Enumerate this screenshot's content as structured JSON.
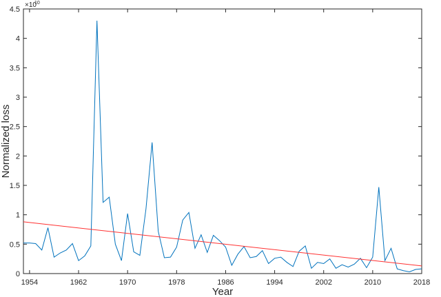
{
  "chart_data": {
    "type": "line",
    "xlabel": "Year",
    "ylabel": "Normalized loss",
    "exponent_label": "×10",
    "exponent_power": "10",
    "xlim": [
      1953,
      2018
    ],
    "ylim": [
      0,
      4.5
    ],
    "y_scale_factor": 10000000000,
    "xticks": [
      1954,
      1962,
      1970,
      1978,
      1986,
      1994,
      2002,
      2010,
      2018
    ],
    "yticks": [
      0,
      0.5,
      1,
      1.5,
      2,
      2.5,
      3,
      3.5,
      4,
      4.5
    ],
    "ytick_labels": [
      "0",
      "0.5",
      "1",
      "1.5",
      "2",
      "2.5",
      "3",
      "3.5",
      "4",
      "4.5"
    ],
    "grid": false,
    "series": [
      {
        "color": "#0072BD",
        "x": [
          1953,
          1954,
          1955,
          1956,
          1957,
          1958,
          1959,
          1960,
          1961,
          1962,
          1963,
          1964,
          1965,
          1966,
          1967,
          1968,
          1969,
          1970,
          1971,
          1972,
          1973,
          1974,
          1975,
          1976,
          1977,
          1978,
          1979,
          1980,
          1981,
          1982,
          1983,
          1984,
          1985,
          1986,
          1987,
          1988,
          1989,
          1990,
          1991,
          1992,
          1993,
          1994,
          1995,
          1996,
          1997,
          1998,
          1999,
          2000,
          2001,
          2002,
          2003,
          2004,
          2005,
          2006,
          2007,
          2008,
          2009,
          2010,
          2011,
          2012,
          2013,
          2014,
          2015,
          2016,
          2017,
          2018
        ],
        "values": [
          0.52,
          0.52,
          0.51,
          0.4,
          0.78,
          0.28,
          0.35,
          0.4,
          0.51,
          0.22,
          0.3,
          0.47,
          4.3,
          1.21,
          1.3,
          0.5,
          0.22,
          1.02,
          0.37,
          0.31,
          1.1,
          2.23,
          0.72,
          0.27,
          0.28,
          0.45,
          0.91,
          1.04,
          0.43,
          0.66,
          0.36,
          0.65,
          0.56,
          0.45,
          0.14,
          0.33,
          0.46,
          0.27,
          0.29,
          0.39,
          0.17,
          0.26,
          0.28,
          0.19,
          0.12,
          0.38,
          0.47,
          0.09,
          0.19,
          0.17,
          0.25,
          0.09,
          0.15,
          0.11,
          0.16,
          0.26,
          0.1,
          0.28,
          1.47,
          0.22,
          0.43,
          0.08,
          0.05,
          0.03,
          0.07,
          0.08
        ]
      },
      {
        "color": "#ff3030",
        "x": [
          1953,
          2018
        ],
        "values": [
          0.88,
          0.13
        ]
      }
    ]
  }
}
